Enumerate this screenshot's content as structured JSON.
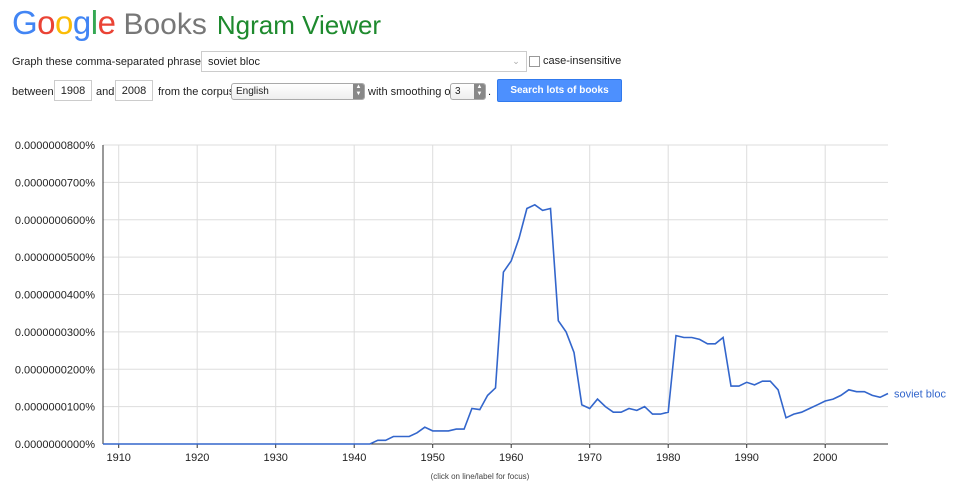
{
  "header": {
    "logo_google": "Google",
    "logo_books": "Books",
    "title": "Ngram Viewer",
    "logo_colors": [
      "#4285F4",
      "#EA4335",
      "#FBBC05",
      "#4285F4",
      "#34A853",
      "#EA4335"
    ]
  },
  "form": {
    "phrase_label": "Graph these comma-separated phrases:",
    "phrase_value": "soviet bloc",
    "case_insensitive_label": "case-insensitive",
    "case_insensitive_checked": false,
    "between_label": "between",
    "start_year": "1908",
    "and_label": "and",
    "end_year": "2008",
    "corpus_label": "from the corpus",
    "corpus_value": "English",
    "smoothing_label": "with smoothing of",
    "smoothing_value": "3",
    "period": ".",
    "search_button": "Search lots of books"
  },
  "chart_data": {
    "type": "line",
    "series": [
      {
        "name": "soviet bloc",
        "color": "#3366cc",
        "x": [
          1908,
          1942,
          1943,
          1944,
          1945,
          1946,
          1947,
          1948,
          1949,
          1950,
          1951,
          1952,
          1953,
          1954,
          1955,
          1956,
          1957,
          1958,
          1959,
          1960,
          1961,
          1962,
          1963,
          1964,
          1965,
          1966,
          1967,
          1968,
          1969,
          1970,
          1971,
          1972,
          1973,
          1974,
          1975,
          1976,
          1977,
          1978,
          1979,
          1980,
          1981,
          1982,
          1983,
          1984,
          1985,
          1986,
          1987,
          1988,
          1989,
          1990,
          1991,
          1992,
          1993,
          1994,
          1995,
          1996,
          1997,
          1998,
          1999,
          2000,
          2001,
          2002,
          2003,
          2004,
          2005,
          2006,
          2007,
          2008
        ],
        "y": [
          0,
          0,
          1e-09,
          1e-09,
          2e-09,
          2e-09,
          2e-09,
          3e-09,
          4.5e-09,
          3.5e-09,
          3.5e-09,
          3.5e-09,
          4e-09,
          4e-09,
          9.5e-09,
          9.2e-09,
          1.3e-08,
          1.5e-08,
          4.6e-08,
          4.9e-08,
          5.5e-08,
          6.3e-08,
          6.4e-08,
          6.25e-08,
          6.3e-08,
          3.3e-08,
          3e-08,
          2.45e-08,
          1.05e-08,
          9.5e-09,
          1.2e-08,
          1e-08,
          8.5e-09,
          8.5e-09,
          9.5e-09,
          9e-09,
          1e-08,
          8e-09,
          8e-09,
          8.5e-09,
          2.9e-08,
          2.85e-08,
          2.85e-08,
          2.8e-08,
          2.68e-08,
          2.68e-08,
          2.85e-08,
          1.55e-08,
          1.55e-08,
          1.65e-08,
          1.58e-08,
          1.68e-08,
          1.68e-08,
          1.45e-08,
          7e-09,
          8e-09,
          8.5e-09,
          9.5e-09,
          1.05e-08,
          1.15e-08,
          1.2e-08,
          1.3e-08,
          1.45e-08,
          1.4e-08,
          1.4e-08,
          1.3e-08,
          1.25e-08,
          1.35e-08
        ]
      }
    ],
    "x_ticks": [
      "1910",
      "1920",
      "1930",
      "1940",
      "1950",
      "1960",
      "1970",
      "1980",
      "1990",
      "2000"
    ],
    "x_tick_values": [
      1910,
      1920,
      1930,
      1940,
      1950,
      1960,
      1970,
      1980,
      1990,
      2000
    ],
    "y_ticks": [
      "0.0000000000%",
      "0.0000000100%",
      "0.0000000200%",
      "0.0000000300%",
      "0.0000000400%",
      "0.0000000500%",
      "0.0000000600%",
      "0.0000000700%",
      "0.0000000800%"
    ],
    "y_tick_values": [
      0,
      1e-08,
      2e-08,
      3e-08,
      4e-08,
      5e-08,
      6e-08,
      7e-08,
      8e-08
    ],
    "xlim": [
      1908,
      2008
    ],
    "ylim": [
      0,
      8e-08
    ],
    "grid": true,
    "legend": "end-of-line label"
  },
  "caption": "(click on line/label for focus)"
}
